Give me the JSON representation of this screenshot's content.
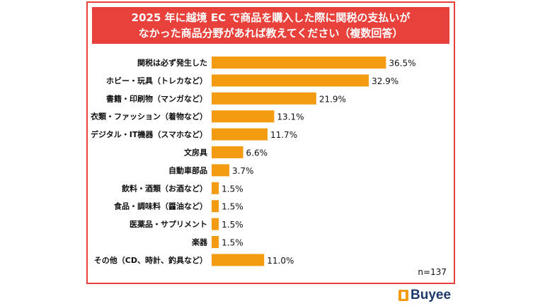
{
  "header": {
    "title_line1": "2025 年に越境 EC で商品を購入した際に関税の支払いが",
    "title_line2": "なかった商品分野があれば教えてください（複数回答）"
  },
  "chart_data": {
    "type": "bar",
    "orientation": "horizontal",
    "title": "2025 年に越境 EC で商品を購入した際に関税の支払いがなかった商品分野があれば教えてください（複数回答）",
    "categories": [
      "関税は必ず発生した",
      "ホビー・玩具（トレカなど）",
      "書籍・印刷物（マンガなど）",
      "衣類・ファッション（着物など）",
      "デジタル・IT機器（スマホなど）",
      "文房具",
      "自動車部品",
      "飲料・酒類（お酒など）",
      "食品・調味料（醤油など）",
      "医薬品・サプリメント",
      "楽器",
      "その他（CD、時計、釣具など）"
    ],
    "values": [
      36.5,
      32.9,
      21.9,
      13.1,
      11.7,
      6.6,
      3.7,
      1.5,
      1.5,
      1.5,
      1.5,
      11.0
    ],
    "value_labels": [
      "36.5%",
      "32.9%",
      "21.9%",
      "13.1%",
      "11.7%",
      "6.6%",
      "3.7%",
      "1.5%",
      "1.5%",
      "1.5%",
      "1.5%",
      "11.0%"
    ],
    "xlim": [
      0,
      40
    ],
    "bar_color": "#f39c12",
    "sample_size": "n=137"
  },
  "brand": {
    "name": "Buyee",
    "color": "#1d3a6b",
    "accent": "#f39c12"
  },
  "colors": {
    "frame": "#e8403a",
    "title_bg": "#e8403a"
  }
}
